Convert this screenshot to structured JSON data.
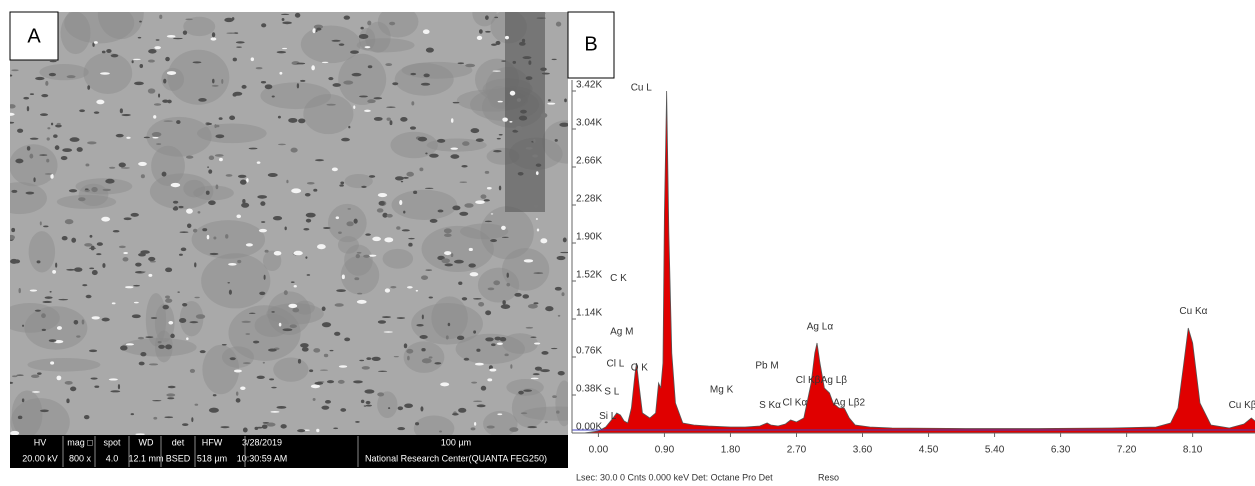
{
  "sem_panel": {
    "label": "A",
    "info_bar": [
      {
        "label": "HV",
        "value": "20.00 kV"
      },
      {
        "label": "mag □",
        "value": "800 x"
      },
      {
        "label": "spot",
        "value": "4.0"
      },
      {
        "label": "WD",
        "value": "12.1 mm"
      },
      {
        "label": "det",
        "value": "BSED"
      },
      {
        "label": "HFW",
        "value": "518 µm"
      },
      {
        "label": "3/28/2019",
        "value": "10:30:59 AM"
      },
      {
        "label": "100 µm",
        "value": "National Research Center(QUANTA FEG250)"
      }
    ]
  },
  "chart_data": {
    "type": "area",
    "panel_label": "B",
    "footer": "Lsec: 30.0 0 Cnts 0.000 keV Det: Octane Pro Det",
    "footer_extra": "Reso",
    "x": [
      -0.2,
      0,
      0.1,
      0.2,
      0.25,
      0.3,
      0.35,
      0.4,
      0.45,
      0.5,
      0.52,
      0.55,
      0.6,
      0.7,
      0.78,
      0.82,
      0.85,
      0.88,
      0.9,
      0.93,
      0.96,
      1.0,
      1.05,
      1.15,
      1.3,
      1.5,
      1.8,
      2.0,
      2.2,
      2.3,
      2.35,
      2.45,
      2.55,
      2.62,
      2.7,
      2.8,
      2.9,
      2.95,
      2.98,
      3.02,
      3.08,
      3.15,
      3.2,
      3.28,
      3.35,
      3.42,
      3.5,
      3.7,
      4.0,
      5.0,
      6.0,
      7.0,
      7.6,
      7.8,
      7.9,
      7.98,
      8.04,
      8.1,
      8.2,
      8.35,
      8.6,
      8.8,
      8.9,
      8.95
    ],
    "series": [
      {
        "color": "#e00000",
        "values": [
          0,
          20,
          60,
          150,
          200,
          180,
          120,
          100,
          250,
          600,
          700,
          500,
          200,
          150,
          200,
          500,
          450,
          700,
          2200,
          3420,
          2000,
          800,
          300,
          100,
          80,
          70,
          60,
          60,
          70,
          100,
          80,
          70,
          90,
          130,
          110,
          150,
          500,
          800,
          900,
          700,
          450,
          400,
          300,
          250,
          250,
          150,
          80,
          60,
          50,
          45,
          45,
          50,
          60,
          100,
          250,
          700,
          1050,
          900,
          300,
          80,
          50,
          90,
          150,
          120
        ]
      }
    ],
    "xlim": [
      -0.36,
      8.95
    ],
    "ylim": [
      0,
      3530
    ],
    "xticks": [
      {
        "value": 0,
        "label": "0.00"
      },
      {
        "value": 0.9,
        "label": "0.90"
      },
      {
        "value": 1.8,
        "label": "1.80"
      },
      {
        "value": 2.7,
        "label": "2.70"
      },
      {
        "value": 3.6,
        "label": "3.60"
      },
      {
        "value": 4.5,
        "label": "4.50"
      },
      {
        "value": 5.4,
        "label": "5.40"
      },
      {
        "value": 6.3,
        "label": "6.30"
      },
      {
        "value": 7.2,
        "label": "7.20"
      },
      {
        "value": 8.1,
        "label": "8.10"
      }
    ],
    "yticks": [
      {
        "value": 0,
        "label": "0.00K"
      },
      {
        "value": 380,
        "label": "0.38K"
      },
      {
        "value": 760,
        "label": "0.76K"
      },
      {
        "value": 1140,
        "label": "1.14K"
      },
      {
        "value": 1520,
        "label": "1.52K"
      },
      {
        "value": 1900,
        "label": "1.90K"
      },
      {
        "value": 2280,
        "label": "2.28K"
      },
      {
        "value": 2660,
        "label": "2.66K"
      },
      {
        "value": 3040,
        "label": "3.04K"
      },
      {
        "value": 3420,
        "label": "3.42K"
      }
    ],
    "annotations": [
      {
        "text": "C K",
        "x": 0.16,
        "y": 1545
      },
      {
        "text": "Ag M",
        "x": 0.16,
        "y": 1010
      },
      {
        "text": "Cl L",
        "x": 0.11,
        "y": 690
      },
      {
        "text": "S L",
        "x": 0.08,
        "y": 412
      },
      {
        "text": "Si L",
        "x": 0.01,
        "y": 165
      },
      {
        "text": "O K",
        "x": 0.44,
        "y": 650
      },
      {
        "text": "Cu L",
        "x": 0.44,
        "y": 3450
      },
      {
        "text": "Mg K",
        "x": 1.52,
        "y": 433
      },
      {
        "text": "Pb M",
        "x": 2.14,
        "y": 670
      },
      {
        "text": "S Kα",
        "x": 2.19,
        "y": 278
      },
      {
        "text": "Cl Kα",
        "x": 2.51,
        "y": 300
      },
      {
        "text": "Cl Kβ",
        "x": 2.69,
        "y": 525
      },
      {
        "text": "Ag Lα",
        "x": 2.84,
        "y": 1060
      },
      {
        "text": "Ag Lβ",
        "x": 3.03,
        "y": 525
      },
      {
        "text": "Ag Lβ2",
        "x": 3.2,
        "y": 300
      },
      {
        "text": "Cu Kα",
        "x": 7.92,
        "y": 1215
      },
      {
        "text": "Cu Kβ",
        "x": 8.59,
        "y": 278
      }
    ]
  }
}
